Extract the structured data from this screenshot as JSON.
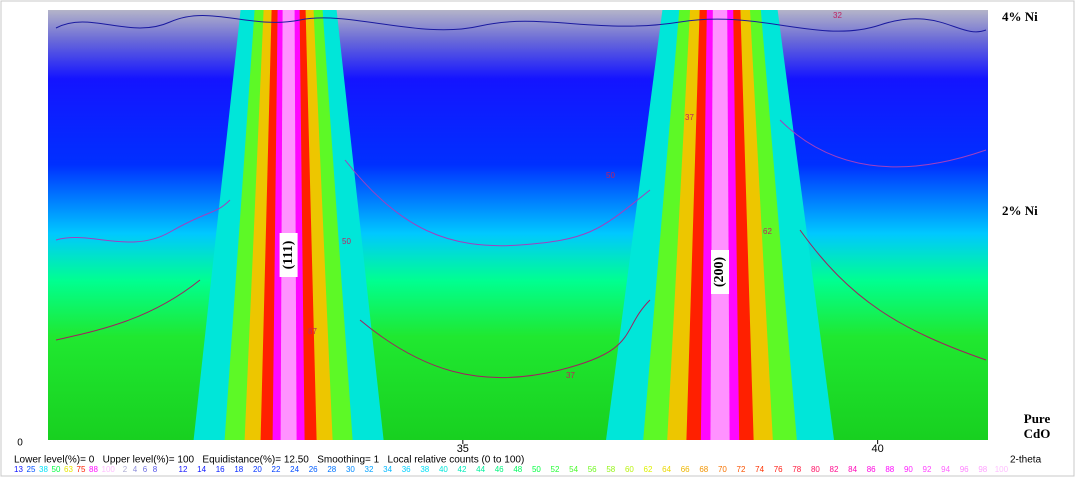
{
  "chart_data": {
    "type": "contour",
    "xlabel": "2-theta",
    "xlim": [
      30,
      41.33
    ],
    "xticks": [
      35,
      40
    ],
    "y_origin_label": "0",
    "row_labels": [
      "4% Ni",
      "2% Ni",
      "Pure CdO"
    ],
    "peaks": [
      {
        "label": "(111)",
        "x": 32.9
      },
      {
        "label": "(200)",
        "x": 38.1
      }
    ],
    "contour_labels": [
      87,
      50,
      37,
      37,
      62,
      50,
      32
    ],
    "settings_text": "Lower level(%)= 0   Upper level(%)= 100   Equidistance(%)= 12.50   Smoothing= 1   Local relative counts (0 to 100)",
    "contour_levels": [
      13,
      25,
      38,
      50,
      63,
      75,
      88,
      100
    ],
    "scale_values": [
      2,
      4,
      6,
      8,
      12,
      14,
      16,
      18,
      20,
      22,
      24,
      26,
      28,
      30,
      32,
      34,
      36,
      38,
      40,
      42,
      44,
      46,
      48,
      50,
      52,
      54,
      56,
      58,
      60,
      62,
      64,
      66,
      68,
      70,
      72,
      74,
      76,
      78,
      80,
      82,
      84,
      86,
      88,
      90,
      92,
      94,
      96,
      98,
      100
    ],
    "colormap": [
      "#c8c8c8",
      "#1010ff",
      "#0050ff",
      "#00e0ff",
      "#00ff40",
      "#e8f000",
      "#ff2000",
      "#ff00ff",
      "#ffc0ff"
    ]
  }
}
